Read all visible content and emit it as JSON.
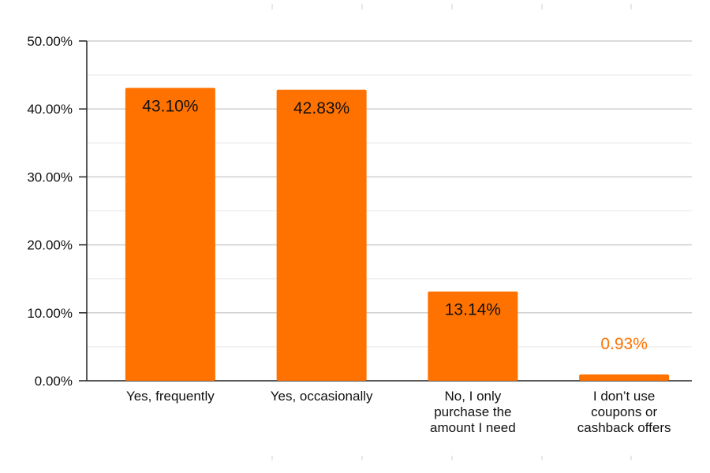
{
  "chart_data": {
    "type": "bar",
    "categories": [
      [
        "Yes, frequently"
      ],
      [
        "Yes, occasionally"
      ],
      [
        "No, I only",
        "purchase the",
        "amount I need"
      ],
      [
        "I don’t use",
        "coupons or",
        "cashback offers"
      ]
    ],
    "values": [
      43.1,
      42.83,
      13.14,
      0.93
    ],
    "data_labels": [
      "43.10%",
      "42.83%",
      "13.14%",
      "0.93%"
    ],
    "yticks": [
      "0.00%",
      "10.00%",
      "20.00%",
      "30.00%",
      "40.00%",
      "50.00%"
    ],
    "ylim": [
      0,
      50
    ],
    "grid": true,
    "bar_color": "#FF7200",
    "label_inside_color": "#111111",
    "label_outside_color": "#FF7200",
    "gridline_color": "#D9D9D9",
    "axis_color": "#222222"
  }
}
